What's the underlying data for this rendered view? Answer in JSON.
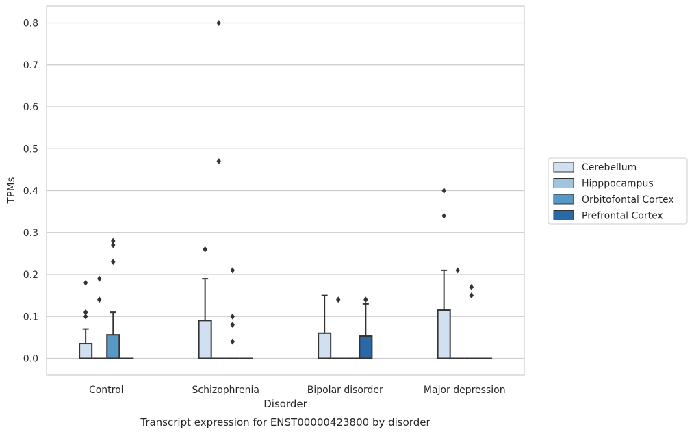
{
  "chart_data": {
    "type": "box",
    "title": "Transcript expression for ENST00000423800 by disorder",
    "xlabel": "Disorder",
    "ylabel": "TPMs",
    "ylim": [
      -0.04,
      0.84
    ],
    "yticks": [
      0.0,
      0.1,
      0.2,
      0.3,
      0.4,
      0.5,
      0.6,
      0.7,
      0.8
    ],
    "ytick_labels": [
      "0.0",
      "0.1",
      "0.2",
      "0.3",
      "0.4",
      "0.5",
      "0.6",
      "0.7",
      "0.8"
    ],
    "grid": "horizontal",
    "legend_position": "right",
    "categories": [
      "Control",
      "Schizophrenia",
      "Bipolar disorder",
      "Major depression"
    ],
    "series": [
      {
        "name": "Cerebellum",
        "color": "#d0e0f0",
        "boxes": [
          {
            "q1": 0.0,
            "median": 0.0,
            "q3": 0.035,
            "whisker_low": 0.0,
            "whisker_high": 0.07,
            "outliers": [
              0.1,
              0.11,
              0.18
            ]
          },
          {
            "q1": 0.0,
            "median": 0.0,
            "q3": 0.09,
            "whisker_low": 0.0,
            "whisker_high": 0.19,
            "outliers": [
              0.26
            ]
          },
          {
            "q1": 0.0,
            "median": 0.0,
            "q3": 0.06,
            "whisker_low": 0.0,
            "whisker_high": 0.15,
            "outliers": []
          },
          {
            "q1": 0.0,
            "median": 0.0,
            "q3": 0.115,
            "whisker_low": 0.0,
            "whisker_high": 0.21,
            "outliers": [
              0.34,
              0.4
            ]
          }
        ]
      },
      {
        "name": "Hipppocampus",
        "color": "#a0c4de",
        "boxes": [
          {
            "q1": 0.0,
            "median": 0.0,
            "q3": 0.0,
            "whisker_low": 0.0,
            "whisker_high": 0.0,
            "outliers": [
              0.14,
              0.19
            ]
          },
          {
            "q1": 0.0,
            "median": 0.0,
            "q3": 0.0,
            "whisker_low": 0.0,
            "whisker_high": 0.0,
            "outliers": [
              0.47,
              0.8
            ]
          },
          {
            "q1": 0.0,
            "median": 0.0,
            "q3": 0.0,
            "whisker_low": 0.0,
            "whisker_high": 0.0,
            "outliers": [
              0.14
            ]
          },
          {
            "q1": 0.0,
            "median": 0.0,
            "q3": 0.0,
            "whisker_low": 0.0,
            "whisker_high": 0.0,
            "outliers": [
              0.21
            ]
          }
        ]
      },
      {
        "name": "Orbitofontal Cortex",
        "color": "#5898c4",
        "boxes": [
          {
            "q1": 0.0,
            "median": 0.0,
            "q3": 0.056,
            "whisker_low": 0.0,
            "whisker_high": 0.11,
            "outliers": [
              0.23,
              0.27,
              0.28
            ]
          },
          {
            "q1": 0.0,
            "median": 0.0,
            "q3": 0.0,
            "whisker_low": 0.0,
            "whisker_high": 0.0,
            "outliers": [
              0.04,
              0.08,
              0.1,
              0.21
            ]
          },
          {
            "q1": 0.0,
            "median": 0.0,
            "q3": 0.0,
            "whisker_low": 0.0,
            "whisker_high": 0.0,
            "outliers": []
          },
          {
            "q1": 0.0,
            "median": 0.0,
            "q3": 0.0,
            "whisker_low": 0.0,
            "whisker_high": 0.0,
            "outliers": [
              0.15,
              0.17
            ]
          }
        ]
      },
      {
        "name": "Prefrontal Cortex",
        "color": "#2a68a8",
        "boxes": [
          {
            "q1": 0.0,
            "median": 0.0,
            "q3": 0.0,
            "whisker_low": 0.0,
            "whisker_high": 0.0,
            "outliers": []
          },
          {
            "q1": 0.0,
            "median": 0.0,
            "q3": 0.0,
            "whisker_low": 0.0,
            "whisker_high": 0.0,
            "outliers": []
          },
          {
            "q1": 0.0,
            "median": 0.0,
            "q3": 0.053,
            "whisker_low": 0.0,
            "whisker_high": 0.13,
            "outliers": [
              0.14
            ]
          },
          {
            "q1": 0.0,
            "median": 0.0,
            "q3": 0.0,
            "whisker_low": 0.0,
            "whisker_high": 0.0,
            "outliers": []
          }
        ]
      }
    ]
  }
}
